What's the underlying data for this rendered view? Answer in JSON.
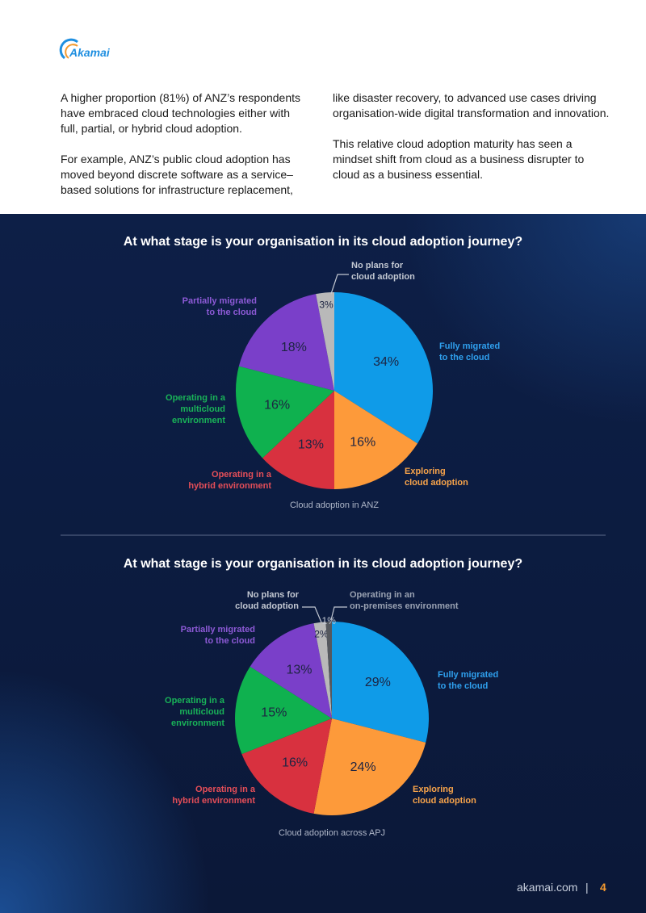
{
  "header": {
    "logo": "Akamai"
  },
  "body": {
    "left": [
      "A higher proportion (81%) of ANZ’s respondents have embraced cloud technologies either with full, partial, or hybrid cloud adoption.",
      "For example, ANZ’s public cloud adoption has moved beyond discrete software as a service–based solutions for infrastructure replacement,"
    ],
    "right": [
      "like disaster recovery, to advanced use cases driving organisation-wide digital transformation and innovation.",
      "This relative cloud adoption maturity has seen a mindset shift from cloud as a business disrupter to cloud as a business essential."
    ]
  },
  "chart_data": [
    {
      "type": "pie",
      "title": "At what stage is your organisation in its cloud adoption journey?",
      "caption": "Cloud adoption in ANZ",
      "categories": [
        "Fully migrated\nto the cloud",
        "Exploring\ncloud adoption",
        "Operating in a\nhybrid environment",
        "Operating in a\nmulticloud\nenvironment",
        "Partially migrated\nto the cloud",
        "No plans for\ncloud adoption"
      ],
      "values": [
        34,
        16,
        13,
        16,
        18,
        3
      ],
      "value_labels": [
        "34%",
        "16%",
        "13%",
        "16%",
        "18%",
        "3%"
      ],
      "colors": [
        "#0f9be8",
        "#fd9a3a",
        "#d8313f",
        "#0fb14f",
        "#7a3fc9",
        "#b9b9b9"
      ]
    },
    {
      "type": "pie",
      "title": "At what stage is your organisation in its cloud adoption journey?",
      "caption": "Cloud adoption across APJ",
      "categories": [
        "Fully migrated\nto the cloud",
        "Exploring\ncloud adoption",
        "Operating in a\nhybrid environment",
        "Operating in a\nmulticloud\nenvironment",
        "Partially migrated\nto the cloud",
        "No plans for\ncloud adoption",
        "Operating in an\non-premises environment"
      ],
      "values": [
        29,
        24,
        16,
        15,
        13,
        2,
        1
      ],
      "value_labels": [
        "29%",
        "24%",
        "16%",
        "15%",
        "13%",
        "2%",
        "1%"
      ],
      "colors": [
        "#0f9be8",
        "#fd9a3a",
        "#d8313f",
        "#0fb14f",
        "#7a3fc9",
        "#b9b9b9",
        "#55585e"
      ]
    }
  ],
  "footer": {
    "site": "akamai.com",
    "separator": "|",
    "page": "4"
  }
}
